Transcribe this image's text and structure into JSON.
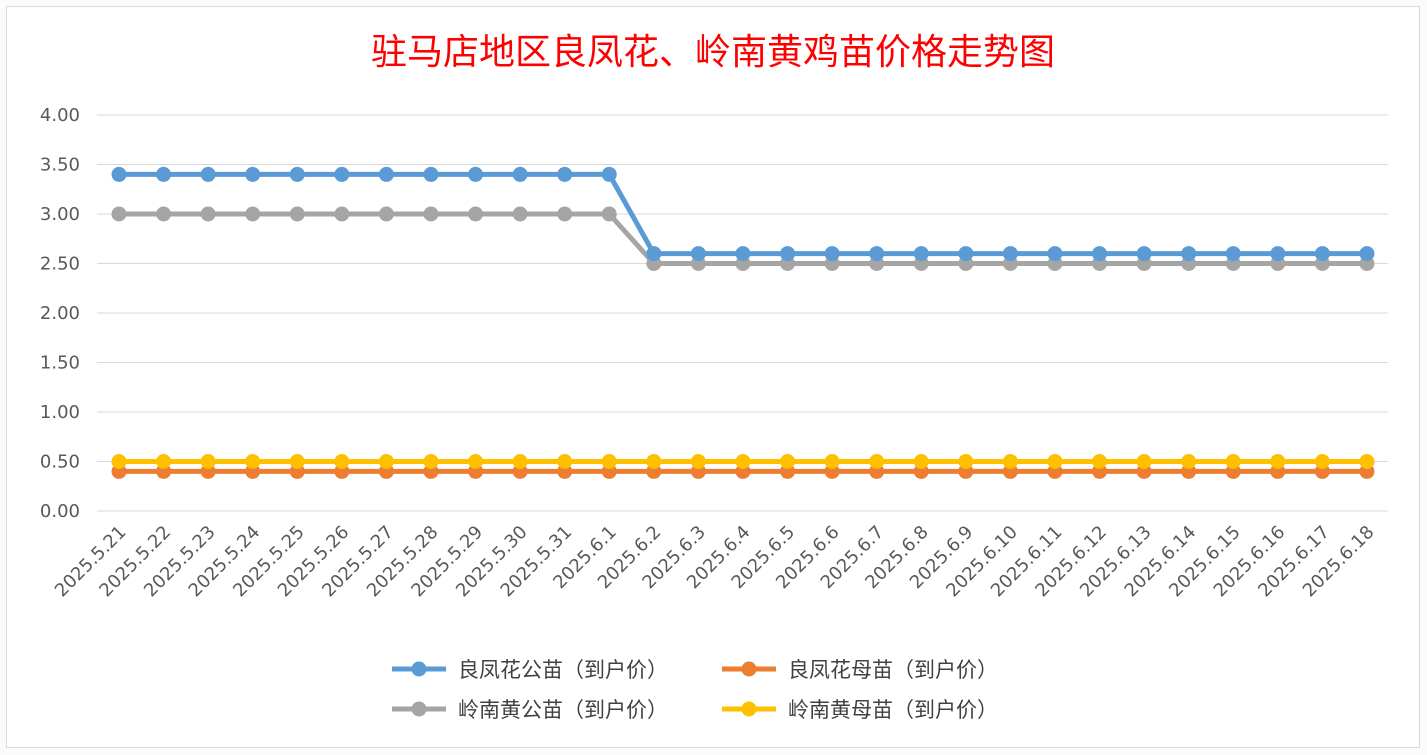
{
  "chart_data": {
    "type": "line",
    "title": "驻马店地区良凤花、岭南黄鸡苗价格走势图",
    "xlabel": "",
    "ylabel": "",
    "ylim": [
      0,
      4
    ],
    "yticks": [
      "0.00",
      "0.50",
      "1.00",
      "1.50",
      "2.00",
      "2.50",
      "3.00",
      "3.50",
      "4.00"
    ],
    "categories": [
      "2025.5.21",
      "2025.5.22",
      "2025.5.23",
      "2025.5.24",
      "2025.5.25",
      "2025.5.26",
      "2025.5.27",
      "2025.5.28",
      "2025.5.29",
      "2025.5.30",
      "2025.5.31",
      "2025.6.1",
      "2025.6.2",
      "2025.6.3",
      "2025.6.4",
      "2025.6.5",
      "2025.6.6",
      "2025.6.7",
      "2025.6.8",
      "2025.6.9",
      "2025.6.10",
      "2025.6.11",
      "2025.6.12",
      "2025.6.13",
      "2025.6.14",
      "2025.6.15",
      "2025.6.16",
      "2025.6.17",
      "2025.6.18"
    ],
    "grid": true,
    "legend_position": "bottom",
    "series": [
      {
        "name": "良凤花公苗（到户价）",
        "color": "#5b9bd5",
        "values": [
          3.4,
          3.4,
          3.4,
          3.4,
          3.4,
          3.4,
          3.4,
          3.4,
          3.4,
          3.4,
          3.4,
          3.4,
          2.6,
          2.6,
          2.6,
          2.6,
          2.6,
          2.6,
          2.6,
          2.6,
          2.6,
          2.6,
          2.6,
          2.6,
          2.6,
          2.6,
          2.6,
          2.6,
          2.6
        ]
      },
      {
        "name": "良凤花母苗（到户价）",
        "color": "#ed7d31",
        "values": [
          0.4,
          0.4,
          0.4,
          0.4,
          0.4,
          0.4,
          0.4,
          0.4,
          0.4,
          0.4,
          0.4,
          0.4,
          0.4,
          0.4,
          0.4,
          0.4,
          0.4,
          0.4,
          0.4,
          0.4,
          0.4,
          0.4,
          0.4,
          0.4,
          0.4,
          0.4,
          0.4,
          0.4,
          0.4
        ]
      },
      {
        "name": "岭南黄公苗（到户价）",
        "color": "#a5a5a5",
        "values": [
          3.0,
          3.0,
          3.0,
          3.0,
          3.0,
          3.0,
          3.0,
          3.0,
          3.0,
          3.0,
          3.0,
          3.0,
          2.5,
          2.5,
          2.5,
          2.5,
          2.5,
          2.5,
          2.5,
          2.5,
          2.5,
          2.5,
          2.5,
          2.5,
          2.5,
          2.5,
          2.5,
          2.5,
          2.5
        ]
      },
      {
        "name": "岭南黄母苗（到户价）",
        "color": "#ffc000",
        "values": [
          0.5,
          0.5,
          0.5,
          0.5,
          0.5,
          0.5,
          0.5,
          0.5,
          0.5,
          0.5,
          0.5,
          0.5,
          0.5,
          0.5,
          0.5,
          0.5,
          0.5,
          0.5,
          0.5,
          0.5,
          0.5,
          0.5,
          0.5,
          0.5,
          0.5,
          0.5,
          0.5,
          0.5,
          0.5
        ]
      }
    ]
  }
}
